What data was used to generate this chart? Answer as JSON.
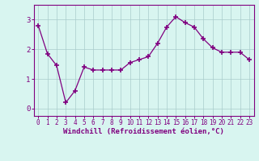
{
  "x": [
    0,
    1,
    2,
    3,
    4,
    5,
    6,
    7,
    8,
    9,
    10,
    11,
    12,
    13,
    14,
    15,
    16,
    17,
    18,
    19,
    20,
    21,
    22,
    23
  ],
  "y": [
    2.8,
    1.85,
    1.45,
    0.2,
    0.6,
    1.4,
    1.3,
    1.3,
    1.3,
    1.3,
    1.55,
    1.65,
    1.75,
    2.2,
    2.75,
    3.1,
    2.9,
    2.75,
    2.35,
    2.05,
    1.9,
    1.9,
    1.9,
    1.65
  ],
  "line_color": "#800080",
  "marker": "+",
  "marker_size": 4,
  "marker_lw": 1.2,
  "bg_color": "#d8f5f0",
  "grid_color": "#aacccc",
  "xlabel": "Windchill (Refroidissement éolien,°C)",
  "xlabel_color": "#800080",
  "tick_color": "#800080",
  "spine_color": "#800080",
  "ylim": [
    -0.25,
    3.5
  ],
  "xlim": [
    -0.5,
    23.5
  ],
  "yticks": [
    0,
    1,
    2,
    3
  ],
  "xticks": [
    0,
    1,
    2,
    3,
    4,
    5,
    6,
    7,
    8,
    9,
    10,
    11,
    12,
    13,
    14,
    15,
    16,
    17,
    18,
    19,
    20,
    21,
    22,
    23
  ],
  "tick_fontsize": 5.5,
  "ylabel_fontsize": 6,
  "xlabel_fontsize": 6.5
}
